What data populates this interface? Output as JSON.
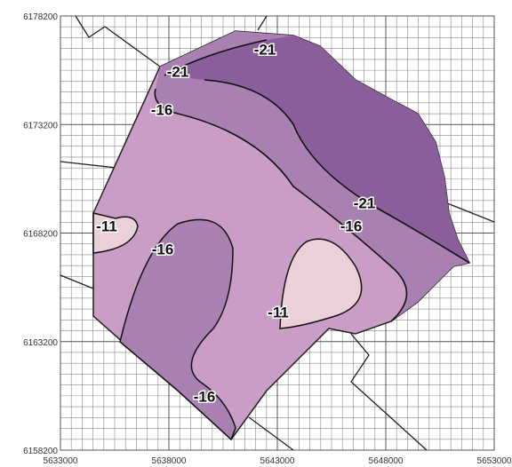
{
  "map": {
    "x_axis_ticks": [
      5633000,
      5638000,
      5643000,
      5648000,
      5653000
    ],
    "y_axis_ticks": [
      6158200,
      6163200,
      6168200,
      6173200,
      6178200
    ],
    "contour_labels": [
      -21,
      -21,
      -16,
      -21,
      -16,
      -11,
      -16,
      -11,
      -16
    ]
  }
}
